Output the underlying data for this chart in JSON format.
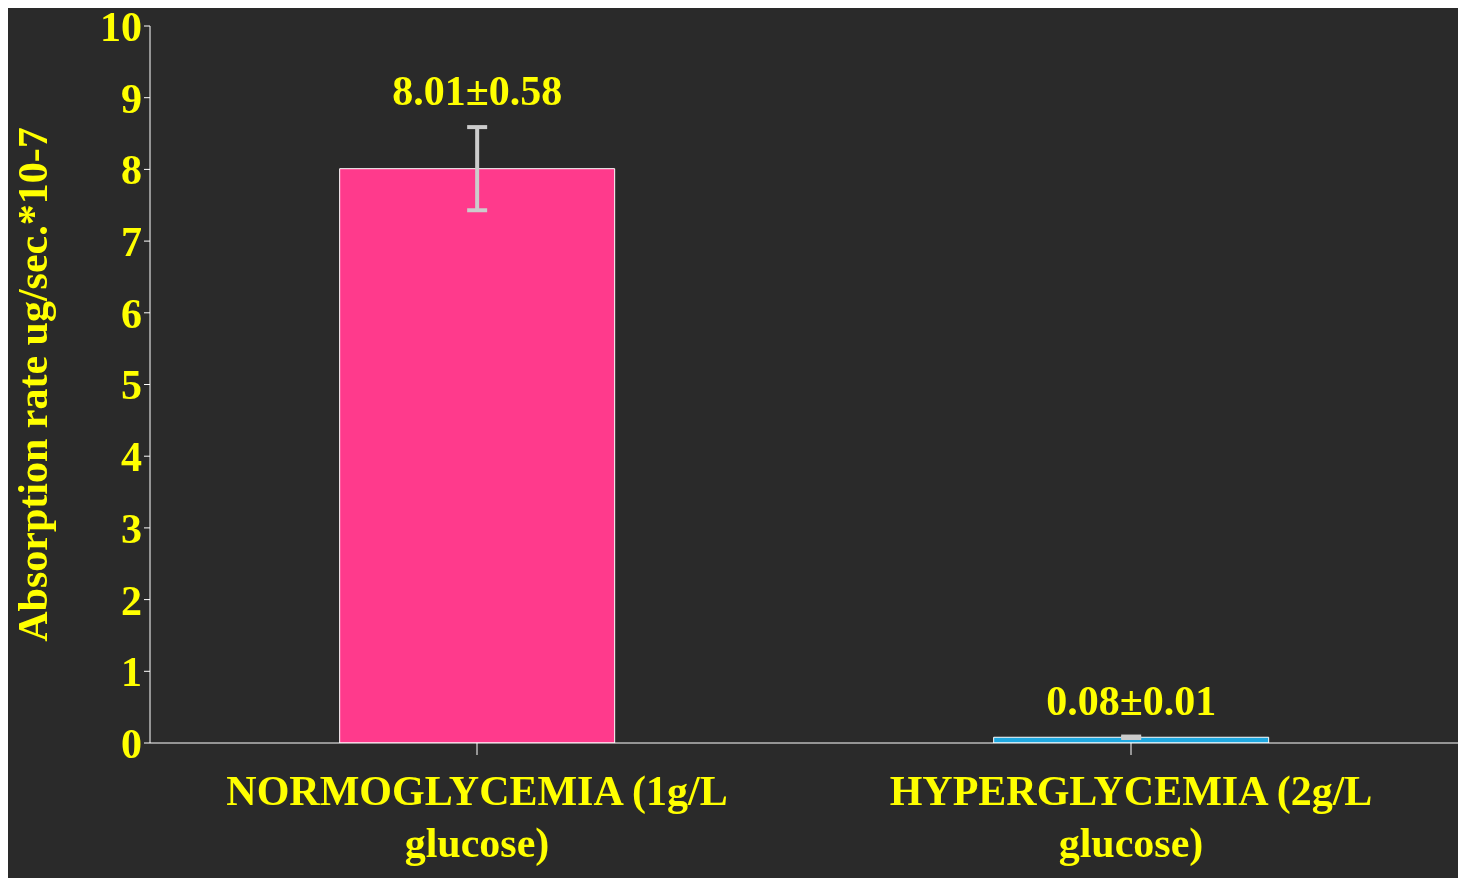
{
  "chart_data": {
    "type": "bar",
    "ylabel": "Absorption rate ug/sec.*10-7",
    "categories": [
      "NORMOGLYCEMIA (1g/L glucose)",
      "HYPERGLYCEMIA (2g/L glucose)"
    ],
    "values": [
      8.01,
      0.08
    ],
    "errors": [
      0.58,
      0.01
    ],
    "value_labels": [
      "8.01±0.58",
      "0.08±0.01"
    ],
    "colors": [
      "#ff3a8c",
      "#1fa8e0"
    ],
    "ylim": [
      0,
      10
    ],
    "yticks": [
      0,
      1,
      2,
      3,
      4,
      5,
      6,
      7,
      8,
      9,
      10
    ],
    "grid": false
  }
}
